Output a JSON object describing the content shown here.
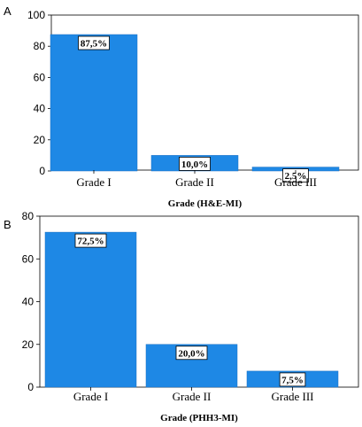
{
  "chart_data": [
    {
      "panel": "A",
      "type": "bar",
      "categories": [
        "Grade I",
        "Grade II",
        "Grade III"
      ],
      "values": [
        87.5,
        10.0,
        2.5
      ],
      "data_labels": [
        "87,5%",
        "10,0%",
        "2,5%"
      ],
      "xlabel": "Grade (H&E-MI)",
      "ylabel": "",
      "ylim": [
        0,
        100
      ],
      "yticks": [
        0,
        20,
        40,
        60,
        80,
        100
      ],
      "bar_color": "#1e88e5",
      "grid": false
    },
    {
      "panel": "B",
      "type": "bar",
      "categories": [
        "Grade I",
        "Grade II",
        "Grade III"
      ],
      "values": [
        72.5,
        20.0,
        7.5
      ],
      "data_labels": [
        "72,5%",
        "20,0%",
        "7,5%"
      ],
      "xlabel": "Grade (PHH3-MI)",
      "ylabel": "",
      "ylim": [
        0,
        80
      ],
      "yticks": [
        0,
        20,
        40,
        60,
        80
      ],
      "bar_color": "#1e88e5",
      "grid": false
    }
  ]
}
